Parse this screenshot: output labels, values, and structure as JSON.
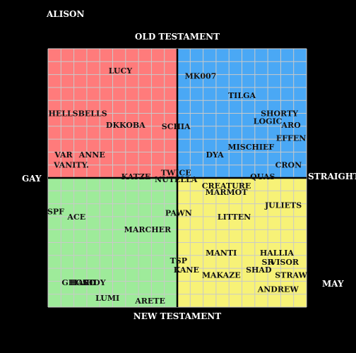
{
  "chart_data": {
    "type": "scatter",
    "corner_top_left": "ALISON",
    "corner_bottom_right": "MAY",
    "axis_labels": {
      "top": "OLD TESTAMENT",
      "bottom": "NEW TESTAMENT",
      "left": "GAY",
      "right": "STRAIGHT"
    },
    "xlim": [
      -10,
      10
    ],
    "ylim": [
      -10,
      10
    ],
    "grid": true,
    "quadrant_colors": {
      "top_left": "#FF7B7B",
      "top_right": "#4AA8F5",
      "bottom_left": "#9EEB9A",
      "bottom_right": "#F7F277"
    },
    "points": [
      {
        "label": "LUCY",
        "x": -4.4,
        "y": 8.3
      },
      {
        "label": "MK007",
        "x": 1.8,
        "y": 7.9
      },
      {
        "label": "TILGA",
        "x": 5.0,
        "y": 6.4
      },
      {
        "label": "HELLSBELLS",
        "x": -7.7,
        "y": 5.0
      },
      {
        "label": "DKKOBA",
        "x": -4.0,
        "y": 4.1
      },
      {
        "label": "SCHIA",
        "x": -0.1,
        "y": 4.0
      },
      {
        "label": "SHORTY",
        "x": 7.9,
        "y": 5.0
      },
      {
        "label": "LOGIC",
        "x": 7.0,
        "y": 4.4
      },
      {
        "label": "ARO",
        "x": 8.8,
        "y": 4.1
      },
      {
        "label": "EFFEN",
        "x": 8.8,
        "y": 3.1
      },
      {
        "label": "MISCHIEF",
        "x": 5.7,
        "y": 2.4
      },
      {
        "label": "DYA",
        "x": 2.9,
        "y": 1.8
      },
      {
        "label": "VAR",
        "x": -8.8,
        "y": 1.8
      },
      {
        "label": "ANNE",
        "x": -6.6,
        "y": 1.8
      },
      {
        "label": "VANITY.",
        "x": -8.2,
        "y": 1.0
      },
      {
        "label": "CRON",
        "x": 8.6,
        "y": 1.0
      },
      {
        "label": "TWICE",
        "x": -0.1,
        "y": 0.4
      },
      {
        "label": "KATZE",
        "x": -3.2,
        "y": 0.1
      },
      {
        "label": "NUTELLA",
        "x": -0.1,
        "y": -0.1
      },
      {
        "label": "QUAS",
        "x": 6.6,
        "y": 0.1
      },
      {
        "label": "CREATURE",
        "x": 3.8,
        "y": -0.6
      },
      {
        "label": "MARMOT",
        "x": 3.8,
        "y": -1.1
      },
      {
        "label": "JULIETS",
        "x": 8.2,
        "y": -2.1
      },
      {
        "label": "SPF",
        "x": -9.4,
        "y": -2.6
      },
      {
        "label": "ACE",
        "x": -7.8,
        "y": -3.0
      },
      {
        "label": "PAWN",
        "x": 0.1,
        "y": -2.7
      },
      {
        "label": "LITTEN",
        "x": 4.4,
        "y": -3.0
      },
      {
        "label": "MARCHER",
        "x": -2.3,
        "y": -4.0
      },
      {
        "label": "MANTI",
        "x": 3.4,
        "y": -5.8
      },
      {
        "label": "HALLIA",
        "x": 7.7,
        "y": -5.8
      },
      {
        "label": "TSP",
        "x": 0.1,
        "y": -6.4
      },
      {
        "label": "SR",
        "x": 7.0,
        "y": -6.5
      },
      {
        "label": "VISOR",
        "x": 8.3,
        "y": -6.5
      },
      {
        "label": "KANE",
        "x": 0.7,
        "y": -7.1
      },
      {
        "label": "SHAD",
        "x": 6.3,
        "y": -7.1
      },
      {
        "label": "MAKAZE",
        "x": 3.4,
        "y": -7.5
      },
      {
        "label": "STRAW",
        "x": 8.8,
        "y": -7.5
      },
      {
        "label": "GHOST",
        "x": -7.7,
        "y": -8.1
      },
      {
        "label": "HALO",
        "x": -7.3,
        "y": -8.1
      },
      {
        "label": "GHIDY",
        "x": -6.7,
        "y": -8.1
      },
      {
        "label": "ANDREW",
        "x": 7.8,
        "y": -8.6
      },
      {
        "label": "LUMI",
        "x": -5.4,
        "y": -9.3
      },
      {
        "label": "ARETE",
        "x": -2.1,
        "y": -9.5
      }
    ]
  }
}
